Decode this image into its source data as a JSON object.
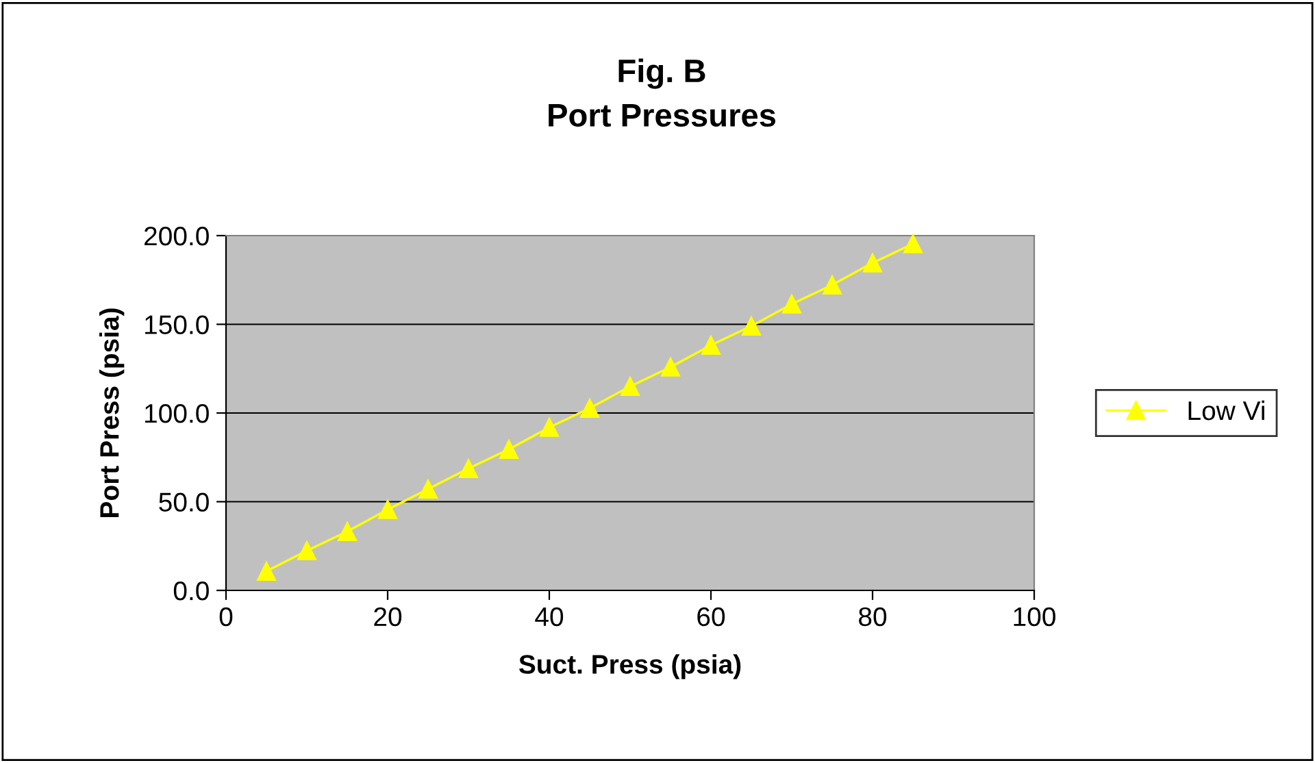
{
  "chart_data": {
    "type": "line",
    "title": "Fig. B\nPort Pressures",
    "xlabel": "Suct. Press (psia)",
    "ylabel": "Port Press (psia)",
    "x": [
      5,
      10,
      15,
      20,
      25,
      30,
      35,
      40,
      45,
      50,
      55,
      60,
      65,
      70,
      75,
      80,
      85
    ],
    "series": [
      {
        "name": "Low Vi",
        "color": "#ffff00",
        "values": [
          10.8,
          22.4,
          33.2,
          45.6,
          57.1,
          68.7,
          79.5,
          91.9,
          102.7,
          115,
          125.9,
          138.2,
          149,
          161.4,
          172.2,
          184.6,
          195.4
        ]
      }
    ],
    "xlim": [
      0,
      100
    ],
    "xticks": [
      0,
      20,
      40,
      60,
      80,
      100
    ],
    "ylim": [
      0,
      200
    ],
    "yticks": [
      {
        "value": 0,
        "label": "0.0"
      },
      {
        "value": 50,
        "label": "50.0"
      },
      {
        "value": 100,
        "label": "100.0"
      },
      {
        "value": 150,
        "label": "150.0"
      },
      {
        "value": 200,
        "label": "200.0"
      }
    ],
    "grid": "y",
    "legend": "right",
    "marker": "triangle",
    "line_style": "solid"
  }
}
